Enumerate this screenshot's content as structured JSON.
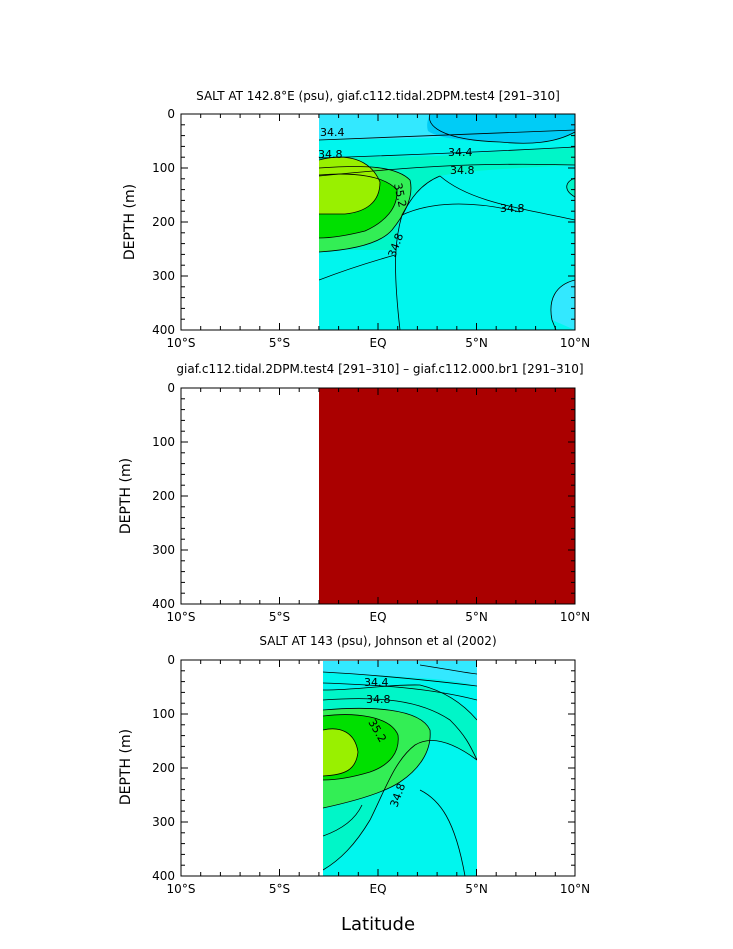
{
  "chart_data": [
    {
      "type": "contour",
      "title": "SALT AT 142.8°E (psu), giaf.c112.tidal.2DPM.test4 [291–310]",
      "ylabel": "DEPTH (m)",
      "xlim": [
        -10,
        10
      ],
      "ylim": [
        400,
        0
      ],
      "x_ticks": [
        "10°S",
        "5°S",
        "EQ",
        "5°N",
        "10°N"
      ],
      "y_ticks": [
        "0",
        "100",
        "200",
        "300",
        "400"
      ],
      "data_extent_x": [
        -3,
        10
      ],
      "contour_labels": [
        "34.4",
        "34.4",
        "34.8",
        "34.8",
        "34.8",
        "35.2",
        "34.8"
      ],
      "salinity_levels": [
        34.2,
        34.3,
        34.4,
        34.5,
        34.6,
        34.7,
        34.8,
        34.9,
        35.0,
        35.1,
        35.2,
        35.3,
        35.4
      ]
    },
    {
      "type": "filled",
      "title": "giaf.c112.tidal.2DPM.test4 [291–310] – giaf.c112.000.br1 [291–310]",
      "ylabel": "DEPTH (m)",
      "xlim": [
        -10,
        10
      ],
      "ylim": [
        400,
        0
      ],
      "x_ticks": [
        "10°S",
        "5°S",
        "EQ",
        "5°N",
        "10°N"
      ],
      "y_ticks": [
        "0",
        "100",
        "200",
        "300",
        "400"
      ],
      "data_extent_x": [
        -3,
        10
      ],
      "fill_color": "#aa0000"
    },
    {
      "type": "contour",
      "title": "SALT AT 143 (psu), Johnson et al (2002)",
      "ylabel": "DEPTH (m)",
      "xlabel": "Latitude",
      "xlim": [
        -10,
        10
      ],
      "ylim": [
        400,
        0
      ],
      "x_ticks": [
        "10°S",
        "5°S",
        "EQ",
        "5°N",
        "10°N"
      ],
      "y_ticks": [
        "0",
        "100",
        "200",
        "300",
        "400"
      ],
      "data_extent_x": [
        -3,
        5
      ],
      "contour_labels": [
        "34.4",
        "34.8",
        "35.2",
        "34.8"
      ],
      "salinity_levels": [
        34.2,
        34.3,
        34.4,
        34.5,
        34.6,
        34.7,
        34.8,
        34.9,
        35.0,
        35.1,
        35.2,
        35.3,
        35.4
      ]
    }
  ],
  "colors": {
    "s_lt_34_4": "#00ccf6",
    "s_34_4_34_6": "#33e8ff",
    "s_34_6_34_8": "#00f6ee",
    "s_34_8_35_0": "#00f6c8",
    "s_35_0_35_2": "#33ee55",
    "s_35_2_35_4": "#00e000",
    "s_gt_35_4": "#99f000",
    "difference": "#aa0000"
  }
}
